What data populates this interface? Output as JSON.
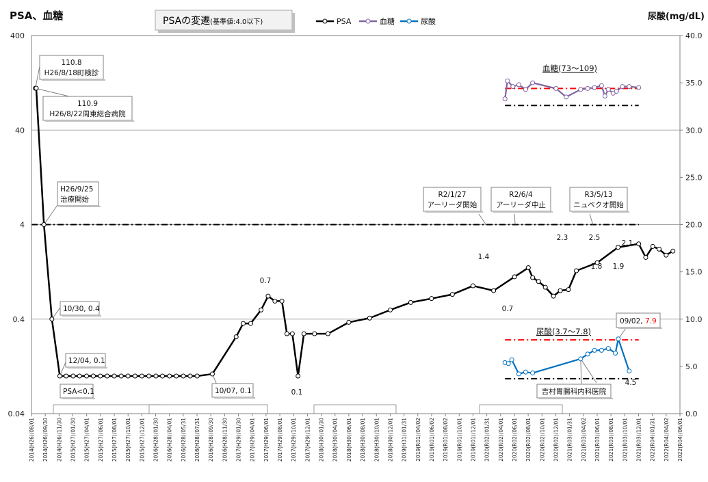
{
  "titles": {
    "left": "PSA、血糖",
    "center_main": "PSAの変遷",
    "center_sub": "(基準値:4.0以下)",
    "right": "尿酸(mg/dL)"
  },
  "legend": [
    {
      "name": "PSA",
      "color": "#000000"
    },
    {
      "name": "血糖",
      "color": "#8064a2"
    },
    {
      "name": "尿酸",
      "color": "#0070c0"
    }
  ],
  "chart_data": {
    "type": "line",
    "y_left": {
      "scale": "log",
      "ticks": [
        "400",
        "40",
        "4",
        "0.4",
        "0.04"
      ],
      "tick_values": [
        400,
        40,
        4,
        0.4,
        0.04
      ],
      "ylim": [
        0.04,
        400
      ]
    },
    "y_right": {
      "scale": "linear",
      "ticks": [
        "0.0",
        "5.0",
        "10.0",
        "15.0",
        "20.0",
        "25.0",
        "30.0",
        "35.0",
        "40.0"
      ],
      "ylim": [
        0,
        40
      ]
    },
    "x_ticks": [
      "2014(H26)/08/01",
      "2014(H26)/09/30",
      "2014(H26)/11/30",
      "2015(H27)/01/30",
      "2015(H27)/04/01",
      "2015(H27)/06/01",
      "2015(H27)/08/01",
      "2015(H27)/10/01",
      "2015(H27)/12/01",
      "2016(H28)/01/30",
      "2016(H28)/04/01",
      "2016(H28)/05/31",
      "2016(H28)/07/31",
      "2016(H28)/09/30",
      "2016(H28)/11/30",
      "2017(H29)/01/30",
      "2017(H29)/04/01",
      "2017(H29)/06/01",
      "2017(H29)/08/01",
      "2017(H29)/10/01",
      "2017(H29)/12/01",
      "2018(H30)/01/30",
      "2018(H30)/04/01",
      "2018(H30)/06/01",
      "2018(H30)/08/01",
      "2018(H30)/10/01",
      "2018(H30)/12/01",
      "2019(H31)/01/31",
      "2019(R01)/04/02",
      "2019(R01)/06/02",
      "2019(R01)/08/02",
      "2019(R01)/10/01",
      "2019(R01)/12/01",
      "2020(R02)/01/31",
      "2020(R02)/04/01",
      "2020(R02)/06/01",
      "2020(R02)/08/01",
      "2020(R02)/10/01",
      "2020(R02)/12/01",
      "2021(R03)/01/31",
      "2021(R03)/04/02",
      "2021(R03)/06/01",
      "2021(R03)/08/01",
      "2021(R03)/10/01",
      "2021(R03)/12/01",
      "2022(R04)/01/31",
      "2022(R04)/04/02",
      "2022(R04)/06/01"
    ],
    "x_range": [
      "2014-08-01",
      "2022-06-01"
    ],
    "series": [
      {
        "name": "PSA",
        "color": "#000000",
        "axis": "left",
        "points": [
          [
            "2014-08-18",
            110.8
          ],
          [
            "2014-08-22",
            110.9
          ],
          [
            "2014-09-25",
            4
          ],
          [
            "2014-10-30",
            0.4
          ],
          [
            "2014-12-04",
            0.1
          ],
          [
            "2015-01-01",
            0.1
          ],
          [
            "2015-02-01",
            0.1
          ],
          [
            "2015-03-01",
            0.1
          ],
          [
            "2015-04-01",
            0.1
          ],
          [
            "2015-05-01",
            0.1
          ],
          [
            "2015-06-01",
            0.1
          ],
          [
            "2015-07-01",
            0.1
          ],
          [
            "2015-08-01",
            0.1
          ],
          [
            "2015-09-01",
            0.1
          ],
          [
            "2015-10-01",
            0.1
          ],
          [
            "2015-11-01",
            0.1
          ],
          [
            "2015-12-01",
            0.1
          ],
          [
            "2016-01-01",
            0.1
          ],
          [
            "2016-02-01",
            0.1
          ],
          [
            "2016-03-01",
            0.1
          ],
          [
            "2016-04-01",
            0.1
          ],
          [
            "2016-05-01",
            0.1
          ],
          [
            "2016-06-01",
            0.1
          ],
          [
            "2016-07-01",
            0.1
          ],
          [
            "2016-08-01",
            0.1
          ],
          [
            "2016-10-07",
            0.105
          ],
          [
            "2017-01-20",
            0.26
          ],
          [
            "2017-02-20",
            0.36
          ],
          [
            "2017-03-25",
            0.36
          ],
          [
            "2017-05-10",
            0.5
          ],
          [
            "2017-06-10",
            0.7
          ],
          [
            "2017-07-10",
            0.62
          ],
          [
            "2017-08-10",
            0.62
          ],
          [
            "2017-09-01",
            0.28
          ],
          [
            "2017-09-25",
            0.28
          ],
          [
            "2017-10-20",
            0.1
          ],
          [
            "2017-11-15",
            0.28
          ],
          [
            "2018-01-01",
            0.28
          ],
          [
            "2018-03-01",
            0.28
          ],
          [
            "2018-06-01",
            0.37
          ],
          [
            "2018-09-01",
            0.41
          ],
          [
            "2018-12-01",
            0.5
          ],
          [
            "2019-03-01",
            0.6
          ],
          [
            "2019-06-01",
            0.66
          ],
          [
            "2019-09-01",
            0.73
          ],
          [
            "2019-12-01",
            0.9
          ],
          [
            "2020-03-01",
            0.8
          ],
          [
            "2020-06-01",
            1.12
          ],
          [
            "2020-08-01",
            1.4
          ],
          [
            "2020-08-20",
            1.1
          ],
          [
            "2020-09-15",
            1.0
          ],
          [
            "2020-10-15",
            0.87
          ],
          [
            "2020-11-20",
            0.7
          ],
          [
            "2020-12-20",
            0.8
          ],
          [
            "2021-01-25",
            0.82
          ],
          [
            "2021-03-01",
            1.3
          ],
          [
            "2021-06-01",
            1.58
          ],
          [
            "2021-09-01",
            2.3
          ],
          [
            "2021-12-01",
            2.5
          ],
          [
            "2022-01-01",
            1.8
          ],
          [
            "2022-02-01",
            2.35
          ],
          [
            "2022-03-01",
            2.2
          ],
          [
            "2022-04-01",
            1.9
          ],
          [
            "2022-05-01",
            2.1
          ]
        ]
      },
      {
        "name": "血糖",
        "color": "#8064a2",
        "axis": "right",
        "points": [
          [
            "2020-04-20",
            33.3
          ],
          [
            "2020-05-01",
            35.2
          ],
          [
            "2020-05-25",
            34.6
          ],
          [
            "2020-06-20",
            34.8
          ],
          [
            "2020-07-20",
            34.3
          ],
          [
            "2020-08-20",
            35.0
          ],
          [
            "2020-12-01",
            34.4
          ],
          [
            "2021-01-15",
            33.5
          ],
          [
            "2021-03-20",
            34.3
          ],
          [
            "2021-04-20",
            34.4
          ],
          [
            "2021-05-20",
            34.5
          ],
          [
            "2021-06-20",
            34.7
          ],
          [
            "2021-07-05",
            33.6
          ],
          [
            "2021-07-20",
            34.3
          ],
          [
            "2021-08-10",
            33.9
          ],
          [
            "2021-08-25",
            34.1
          ],
          [
            "2021-09-20",
            34.6
          ],
          [
            "2021-10-20",
            34.6
          ],
          [
            "2021-12-01",
            34.5
          ]
        ]
      },
      {
        "name": "尿酸",
        "color": "#0070c0",
        "axis": "right",
        "points": [
          [
            "2020-04-20",
            5.4
          ],
          [
            "2020-05-05",
            5.3
          ],
          [
            "2020-05-20",
            5.7
          ],
          [
            "2020-06-20",
            4.2
          ],
          [
            "2020-07-20",
            4.4
          ],
          [
            "2020-08-20",
            4.3
          ],
          [
            "2021-03-20",
            5.8
          ],
          [
            "2021-04-20",
            6.3
          ],
          [
            "2021-05-20",
            6.7
          ],
          [
            "2021-06-20",
            6.7
          ],
          [
            "2021-07-20",
            6.9
          ],
          [
            "2021-08-20",
            6.4
          ],
          [
            "2021-09-02",
            7.9
          ],
          [
            "2021-10-20",
            4.5
          ]
        ]
      }
    ],
    "reference_lines": [
      {
        "axis": "left",
        "value": 4,
        "style": "dashdot",
        "color": "#000000"
      },
      {
        "axis": "right",
        "value": 34.4,
        "style": "dashdot",
        "color": "#ff0000",
        "x_from": "2020-04-20",
        "x_to": "2021-12-01"
      },
      {
        "axis": "right",
        "value": 32.6,
        "style": "dashdot",
        "color": "#000000",
        "x_from": "2020-04-20",
        "x_to": "2021-12-01"
      },
      {
        "axis": "right",
        "value": 7.8,
        "style": "dashdot",
        "color": "#ff0000",
        "x_from": "2020-04-20",
        "x_to": "2021-12-01"
      },
      {
        "axis": "right",
        "value": 3.7,
        "style": "dashdot",
        "color": "#000000",
        "x_from": "2020-04-20",
        "x_to": "2021-12-01"
      }
    ],
    "annotations": [
      {
        "lines": [
          "110.8",
          "H26/8/18町検診"
        ]
      },
      {
        "lines": [
          "110.9",
          "H26/8/22周東総合病院"
        ]
      },
      {
        "lines": [
          "H26/9/25",
          "治療開始"
        ]
      },
      {
        "lines": [
          "10/30, 0.4"
        ]
      },
      {
        "lines": [
          "12/04, 0.1"
        ]
      },
      {
        "lines": [
          "PSA<0.1"
        ]
      },
      {
        "lines": [
          "10/07, 0.1"
        ]
      },
      {
        "lines": [
          "R2/1/27",
          "アーリーダ開始"
        ]
      },
      {
        "lines": [
          "R2/6/4",
          "アーリーダ中止"
        ]
      },
      {
        "lines": [
          "R3/5/13",
          "ニュベクオ開始"
        ]
      },
      {
        "lines": [
          "吉村胃腸科内科医院"
        ]
      },
      {
        "lines": [
          "09/02, ",
          "7.9"
        ]
      }
    ],
    "value_labels": [
      "0.7",
      "0.1",
      "1.4",
      "0.7",
      "2.3",
      "2.5",
      "1.8",
      "1.9",
      "2.1",
      "4.5"
    ],
    "range_labels": [
      "血糖(73〜109)",
      "尿酸(3.7〜7.8)"
    ],
    "grid": true,
    "legend_position": "top-center"
  }
}
